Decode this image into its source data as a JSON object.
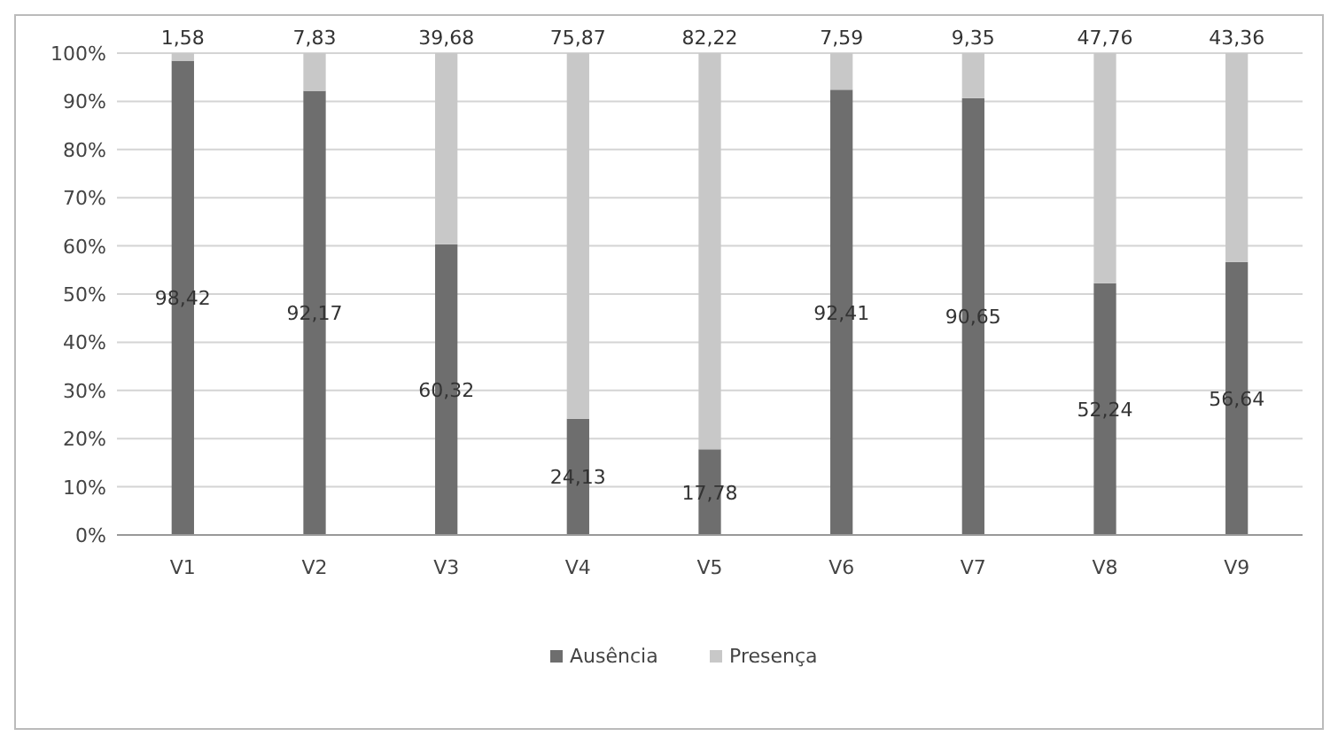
{
  "chart_data": {
    "type": "bar",
    "stacked": true,
    "categories": [
      "V1",
      "V2",
      "V3",
      "V4",
      "V5",
      "V6",
      "V7",
      "V8",
      "V9"
    ],
    "series": [
      {
        "name": "Ausência",
        "color": "#6e6e6e",
        "values": [
          98.42,
          92.17,
          60.32,
          24.13,
          17.78,
          92.41,
          90.65,
          52.24,
          56.64
        ],
        "value_labels": [
          "98,42",
          "92,17",
          "60,32",
          "24,13",
          "17,78",
          "92,41",
          "90,65",
          "52,24",
          "56,64"
        ]
      },
      {
        "name": "Presença",
        "color": "#c8c8c8",
        "values": [
          1.58,
          7.83,
          39.68,
          75.87,
          82.22,
          7.59,
          9.35,
          47.76,
          43.36
        ],
        "value_labels": [
          "1,58",
          "7,83",
          "39,68",
          "75,87",
          "82,22",
          "7,59",
          "9,35",
          "47,76",
          "43,36"
        ]
      }
    ],
    "ylim": [
      0,
      100
    ],
    "yticks": [
      {
        "value": 0,
        "label": "0%"
      },
      {
        "value": 10,
        "label": "10%"
      },
      {
        "value": 20,
        "label": "20%"
      },
      {
        "value": 30,
        "label": "30%"
      },
      {
        "value": 40,
        "label": "40%"
      },
      {
        "value": 50,
        "label": "50%"
      },
      {
        "value": 60,
        "label": "60%"
      },
      {
        "value": 70,
        "label": "70%"
      },
      {
        "value": 80,
        "label": "80%"
      },
      {
        "value": 90,
        "label": "90%"
      },
      {
        "value": 100,
        "label": "100%"
      }
    ],
    "grid": "y",
    "legend": "bottom"
  }
}
